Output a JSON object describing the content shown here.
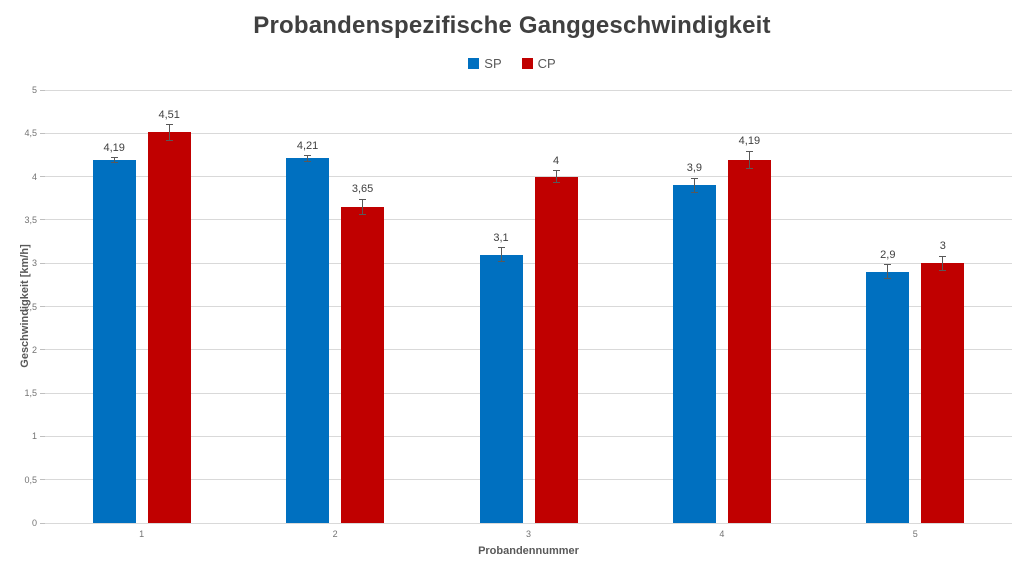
{
  "chart_data": {
    "type": "bar",
    "title": "Probandenspezifische Ganggeschwindigkeit",
    "xlabel": "Probandennummer",
    "ylabel": "Geschwindigkeit [km/h]",
    "categories": [
      "1",
      "2",
      "3",
      "4",
      "5"
    ],
    "series": [
      {
        "name": "SP",
        "color": "#0070C0",
        "values": [
          4.19,
          4.21,
          3.1,
          3.9,
          2.9
        ],
        "labels": [
          "4,19",
          "4,21",
          "3,1",
          "3,9",
          "2,9"
        ],
        "errors": [
          0.03,
          0.03,
          0.08,
          0.08,
          0.08
        ]
      },
      {
        "name": "CP",
        "color": "#C00000",
        "values": [
          4.51,
          3.65,
          4.0,
          4.19,
          3.0
        ],
        "labels": [
          "4,51",
          "3,65",
          "4",
          "4,19",
          "3"
        ],
        "errors": [
          0.09,
          0.09,
          0.07,
          0.1,
          0.08
        ]
      }
    ],
    "ylim": [
      0,
      5
    ],
    "ytick_step": 0.5,
    "ytick_labels": [
      "0",
      "0,5",
      "1",
      "1,5",
      "2",
      "2,5",
      "3",
      "3,5",
      "4",
      "4,5",
      "5"
    ],
    "grid": true,
    "legend_position": "top-center",
    "error_bar_color": "#595959"
  }
}
